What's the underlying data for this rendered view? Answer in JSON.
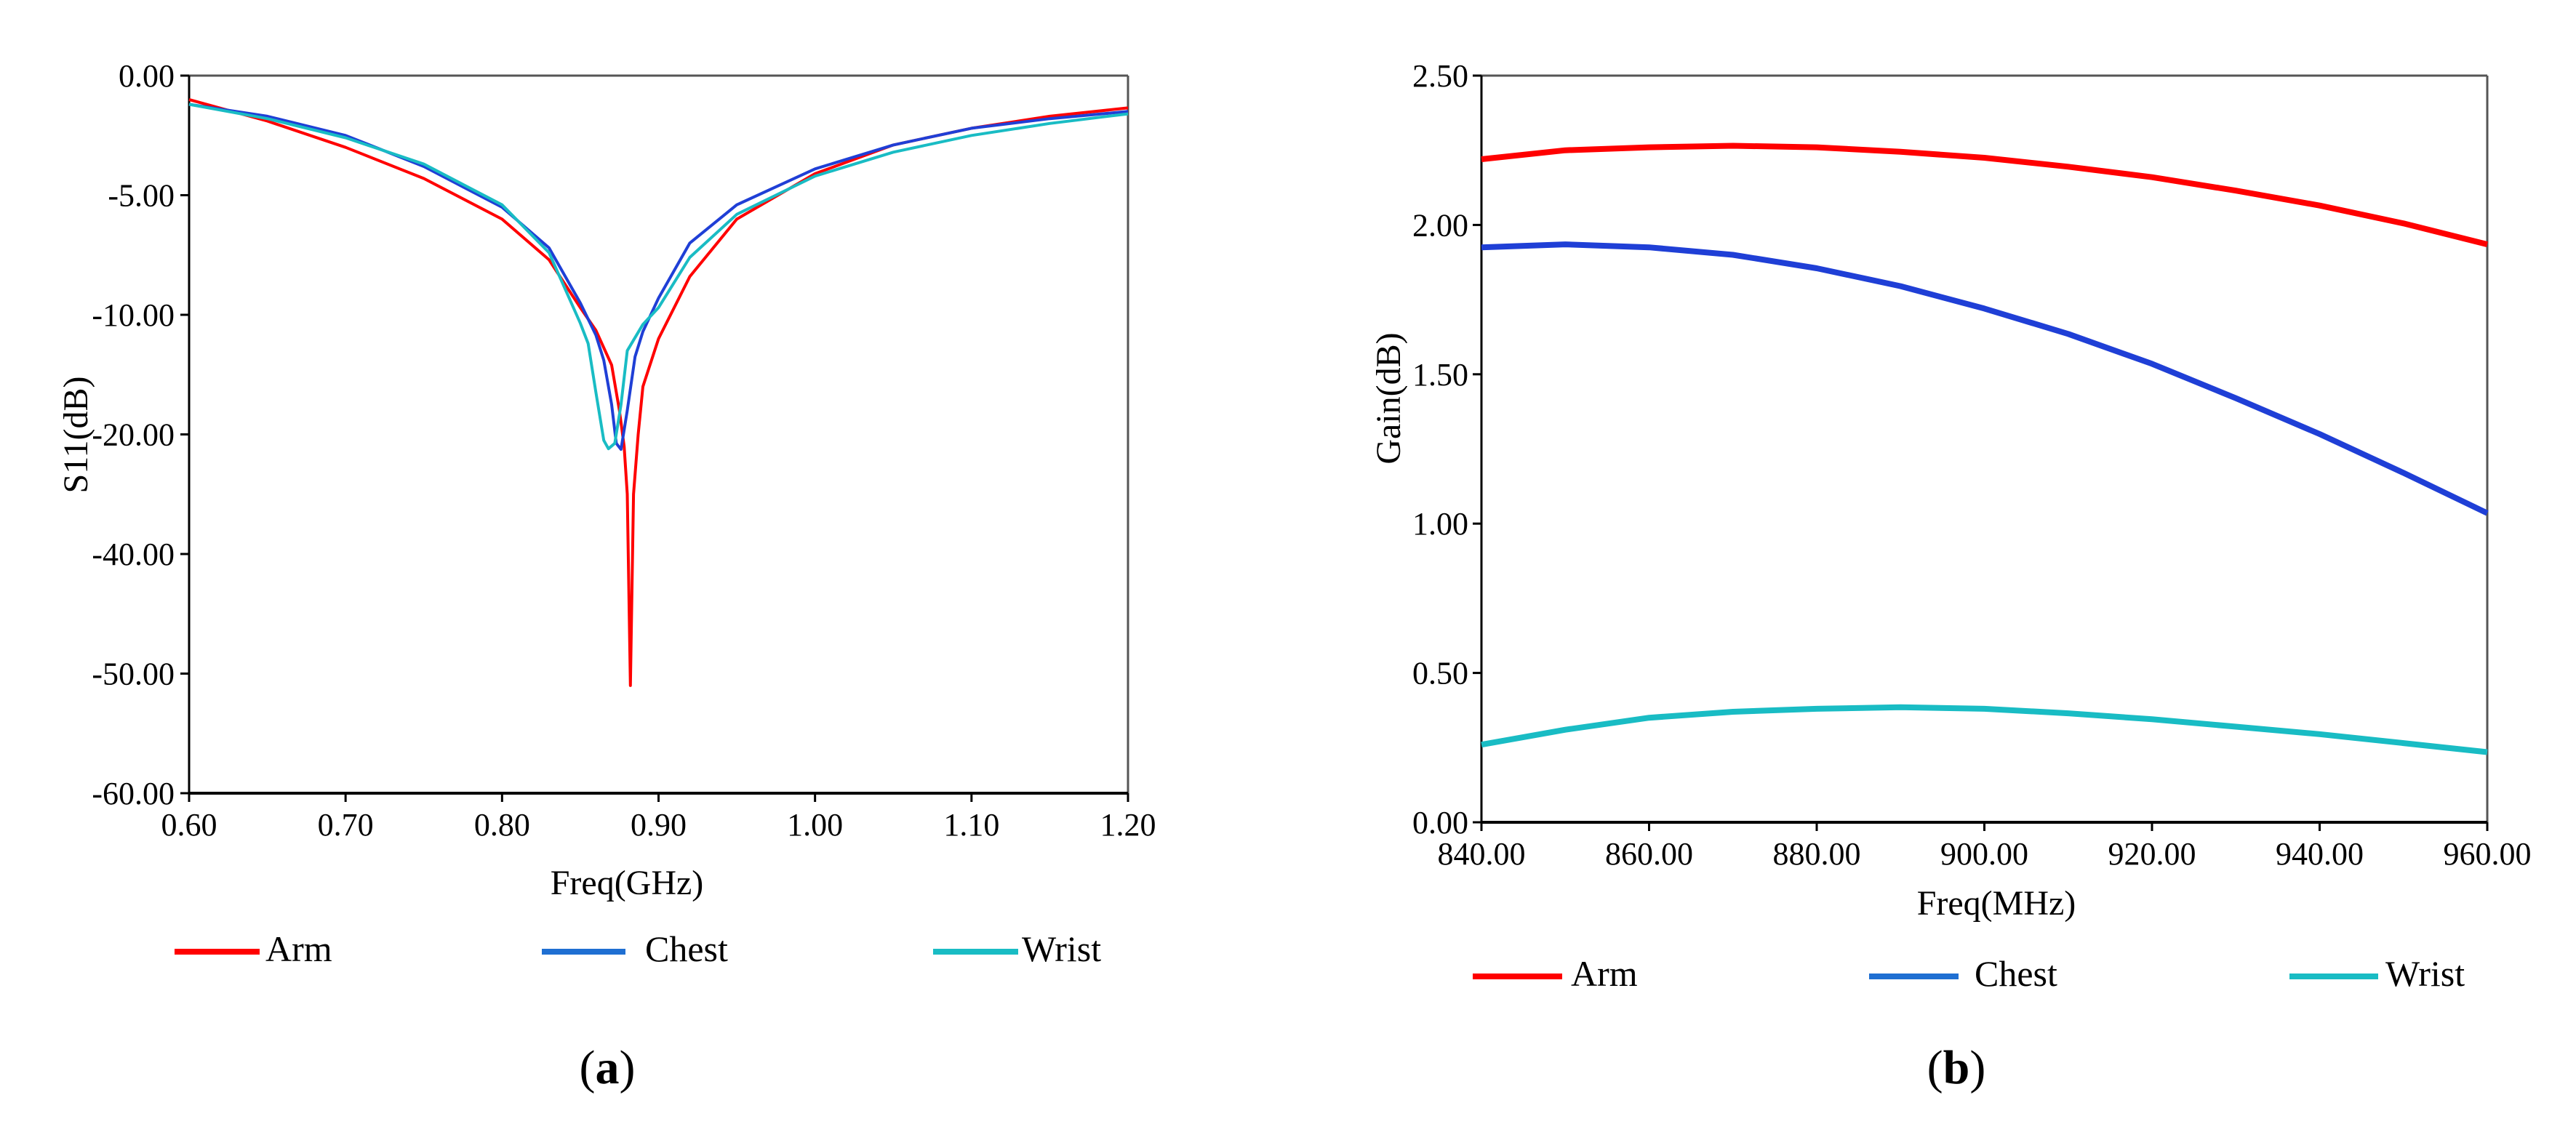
{
  "chart_data": [
    {
      "type": "line",
      "panel": "a",
      "caption_prefix": "(",
      "caption_letter": "a",
      "caption_suffix": ")",
      "xlabel": "Freq(GHz)",
      "ylabel": "S11(dB)",
      "xlim": [
        0.6,
        1.2
      ],
      "ylim": [
        -60,
        0
      ],
      "x_ticks": [
        "0.60",
        "0.70",
        "0.80",
        "0.90",
        "1.00",
        "1.10",
        "1.20"
      ],
      "y_ticks": [
        "0.00",
        "-5.00",
        "-10.00",
        "-20.00",
        "-40.00",
        "-50.00",
        "-60.00"
      ],
      "y_tick_mapping_note": "non-linear axis: ticks are evenly spaced",
      "y_tick_values": [
        0,
        -5,
        -10,
        -20,
        -40,
        -50,
        -60
      ],
      "legend": [
        {
          "name": "Arm",
          "color": "#ff0000"
        },
        {
          "name": "Chest",
          "color": "#1f3fd6"
        },
        {
          "name": "Wrist",
          "color": "#19bcc4"
        }
      ],
      "series": [
        {
          "name": "Arm",
          "color": "#ff0000",
          "x": [
            0.6,
            0.65,
            0.7,
            0.75,
            0.8,
            0.83,
            0.85,
            0.86,
            0.87,
            0.875,
            0.878,
            0.88,
            0.882,
            0.884,
            0.887,
            0.89,
            0.9,
            0.92,
            0.95,
            1.0,
            1.05,
            1.1,
            1.15,
            1.2
          ],
          "y": [
            -1.0,
            -1.9,
            -3.0,
            -4.3,
            -6.0,
            -7.7,
            -9.7,
            -11.3,
            -14.2,
            -18.0,
            -22.0,
            -30.0,
            -51.0,
            -30.0,
            -20.0,
            -16.0,
            -12.0,
            -8.4,
            -6.0,
            -4.1,
            -2.9,
            -2.2,
            -1.7,
            -1.35
          ]
        },
        {
          "name": "Chest",
          "color": "#1f3fd6",
          "x": [
            0.6,
            0.65,
            0.7,
            0.75,
            0.8,
            0.83,
            0.85,
            0.86,
            0.865,
            0.87,
            0.873,
            0.876,
            0.88,
            0.885,
            0.89,
            0.9,
            0.92,
            0.95,
            1.0,
            1.05,
            1.1,
            1.15,
            1.2
          ],
          "y": [
            -1.2,
            -1.7,
            -2.5,
            -3.8,
            -5.5,
            -7.2,
            -9.5,
            -11.7,
            -13.8,
            -17.5,
            -21.5,
            -22.5,
            -18.0,
            -13.5,
            -11.4,
            -9.3,
            -7.0,
            -5.4,
            -3.9,
            -2.9,
            -2.2,
            -1.8,
            -1.5
          ]
        },
        {
          "name": "Wrist",
          "color": "#19bcc4",
          "x": [
            0.6,
            0.65,
            0.7,
            0.75,
            0.8,
            0.83,
            0.85,
            0.855,
            0.86,
            0.865,
            0.868,
            0.872,
            0.876,
            0.88,
            0.89,
            0.9,
            0.92,
            0.95,
            1.0,
            1.05,
            1.1,
            1.15,
            1.2
          ],
          "y": [
            -1.2,
            -1.8,
            -2.6,
            -3.7,
            -5.4,
            -7.4,
            -10.7,
            -12.4,
            -16.5,
            -21.0,
            -22.4,
            -21.5,
            -17.5,
            -13.0,
            -10.8,
            -9.7,
            -7.6,
            -5.8,
            -4.2,
            -3.2,
            -2.5,
            -2.0,
            -1.6
          ]
        }
      ]
    },
    {
      "type": "line",
      "panel": "b",
      "caption_prefix": "(",
      "caption_letter": "b",
      "caption_suffix": ")",
      "xlabel": "Freq(MHz)",
      "ylabel": "Gain(dB)",
      "xlim": [
        840,
        960
      ],
      "ylim": [
        0,
        2.5
      ],
      "x_ticks": [
        "840.00",
        "860.00",
        "880.00",
        "900.00",
        "920.00",
        "940.00",
        "960.00"
      ],
      "y_ticks": [
        "2.50",
        "2.00",
        "1.50",
        "1.00",
        "0.50",
        "0.00"
      ],
      "legend": [
        {
          "name": "Arm",
          "color": "#ff0000"
        },
        {
          "name": "Chest",
          "color": "#1f3fd6"
        },
        {
          "name": "Wrist",
          "color": "#19bcc4"
        }
      ],
      "series": [
        {
          "name": "Arm",
          "color": "#ff0000",
          "x": [
            840,
            850,
            860,
            870,
            880,
            890,
            900,
            910,
            920,
            930,
            940,
            950,
            960
          ],
          "y": [
            2.22,
            2.25,
            2.26,
            2.265,
            2.26,
            2.245,
            2.225,
            2.195,
            2.16,
            2.115,
            2.065,
            2.005,
            1.935
          ]
        },
        {
          "name": "Chest",
          "color": "#1f3fd6",
          "x": [
            840,
            850,
            860,
            870,
            880,
            890,
            900,
            910,
            920,
            930,
            940,
            950,
            960
          ],
          "y": [
            1.925,
            1.935,
            1.925,
            1.9,
            1.855,
            1.795,
            1.72,
            1.635,
            1.535,
            1.42,
            1.3,
            1.17,
            1.035
          ]
        },
        {
          "name": "Wrist",
          "color": "#19bcc4",
          "x": [
            840,
            850,
            860,
            870,
            880,
            890,
            900,
            910,
            920,
            930,
            940,
            950,
            960
          ],
          "y": [
            0.26,
            0.31,
            0.35,
            0.37,
            0.38,
            0.385,
            0.38,
            0.365,
            0.345,
            0.32,
            0.295,
            0.265,
            0.235
          ]
        }
      ]
    }
  ]
}
